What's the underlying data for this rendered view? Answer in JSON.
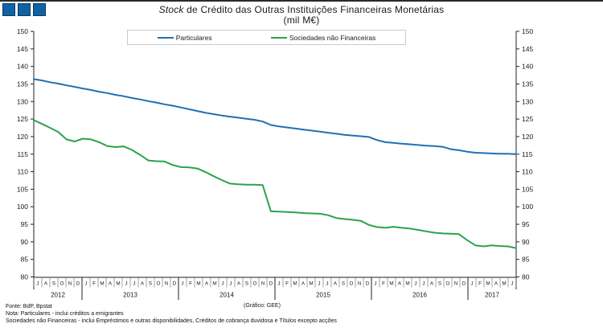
{
  "title": {
    "em": "Stock",
    "rest": " de Crédito das Outras Instituições Financeiras Monetárias",
    "subtitle": "(mil M€)"
  },
  "logo": {
    "squares": 3,
    "fill": "#1162A4",
    "border": "#093A67"
  },
  "legend": [
    {
      "label": "Particulares",
      "color": "#1F70B4"
    },
    {
      "label": "Sociedades não Financeiras",
      "color": "#2BA24C"
    }
  ],
  "chart_data": {
    "type": "line",
    "title": "Stock de Crédito das Outras Instituições Financeiras Monetárias",
    "subtitle": "(mil M€)",
    "ylabel": "",
    "xlabel": "",
    "ylim": [
      80,
      150
    ],
    "ytick_step": 5,
    "grid": false,
    "legend_position": "top-center",
    "dual_y_axis": true,
    "x_months": [
      "J",
      "A",
      "S",
      "O",
      "N",
      "D",
      "J",
      "F",
      "M",
      "A",
      "M",
      "J",
      "J",
      "A",
      "S",
      "O",
      "N",
      "D",
      "J",
      "F",
      "M",
      "A",
      "M",
      "J",
      "J",
      "A",
      "S",
      "O",
      "N",
      "D",
      "J",
      "F",
      "M",
      "A",
      "M",
      "J",
      "J",
      "A",
      "S",
      "O",
      "N",
      "D",
      "J",
      "F",
      "M",
      "A",
      "M",
      "J",
      "J",
      "A",
      "S",
      "O",
      "N",
      "D",
      "J",
      "F",
      "M",
      "A",
      "M",
      "J"
    ],
    "years": [
      {
        "label": "2012",
        "months": 6
      },
      {
        "label": "2013",
        "months": 12
      },
      {
        "label": "2014",
        "months": 12
      },
      {
        "label": "2015",
        "months": 12
      },
      {
        "label": "2016",
        "months": 12
      },
      {
        "label": "2017",
        "months": 6
      }
    ],
    "series": [
      {
        "name": "Particulares",
        "color": "#1F70B4",
        "values": [
          136.4,
          136.0,
          135.5,
          135.1,
          134.6,
          134.2,
          133.7,
          133.3,
          132.8,
          132.4,
          131.9,
          131.5,
          131.0,
          130.6,
          130.1,
          129.7,
          129.2,
          128.8,
          128.3,
          127.8,
          127.3,
          126.8,
          126.4,
          126.0,
          125.7,
          125.4,
          125.1,
          124.8,
          124.3,
          123.3,
          122.9,
          122.6,
          122.3,
          122.0,
          121.7,
          121.4,
          121.1,
          120.8,
          120.5,
          120.3,
          120.1,
          119.9,
          119.0,
          118.4,
          118.2,
          118.0,
          117.8,
          117.6,
          117.4,
          117.3,
          117.1,
          116.4,
          116.1,
          115.7,
          115.4,
          115.3,
          115.2,
          115.1,
          115.1,
          115.0
        ]
      },
      {
        "name": "Sociedades não Financeiras",
        "color": "#2BA24C",
        "values": [
          124.7,
          123.6,
          122.5,
          121.3,
          119.2,
          118.6,
          119.4,
          119.2,
          118.4,
          117.3,
          117.0,
          117.2,
          116.2,
          114.8,
          113.2,
          113.0,
          112.9,
          111.9,
          111.3,
          111.2,
          110.9,
          109.9,
          108.7,
          107.6,
          106.6,
          106.4,
          106.3,
          106.3,
          106.2,
          98.7,
          98.6,
          98.5,
          98.4,
          98.2,
          98.1,
          98.0,
          97.6,
          96.8,
          96.5,
          96.3,
          96.0,
          94.8,
          94.2,
          94.0,
          94.3,
          94.0,
          93.8,
          93.4,
          93.0,
          92.6,
          92.4,
          92.3,
          92.2,
          90.5,
          89.0,
          88.7,
          89.0,
          88.8,
          88.7,
          88.2
        ]
      }
    ]
  },
  "footer": {
    "fonte": "Fonte: BdP, Bpstat",
    "grafico": "(Gráfico: GEE)",
    "nota1": "Nota: Particulares - inclui créditos a emigrantes",
    "nota2": "Sociedades não Financeiras - inclui Empréstimos e outras disponibilidades, Créditos de cobrança duvidosa e Títulos excepto acções"
  }
}
